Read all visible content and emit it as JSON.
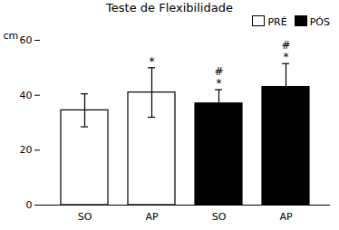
{
  "chart_data": {
    "type": "bar",
    "title": "Teste de Flexibilidade",
    "ylabel": "cm",
    "categories": [
      "SO",
      "AP",
      "SO",
      "AP"
    ],
    "series": [
      {
        "name": "PRÉ",
        "color": "white",
        "values": [
          34.5,
          41.0,
          null,
          null
        ],
        "errors": [
          6.0,
          9.0,
          null,
          null
        ]
      },
      {
        "name": "PÓS",
        "color": "black",
        "values": [
          null,
          null,
          37.0,
          43.0
        ],
        "errors": [
          null,
          null,
          5.0,
          8.5
        ]
      }
    ],
    "annotations": [
      null,
      [
        "*"
      ],
      [
        "*",
        "#"
      ],
      [
        "*",
        "#"
      ]
    ],
    "ylim": [
      0,
      60
    ],
    "yticks": [
      0,
      20,
      40,
      60
    ],
    "legend": "upper right",
    "grid": false
  }
}
